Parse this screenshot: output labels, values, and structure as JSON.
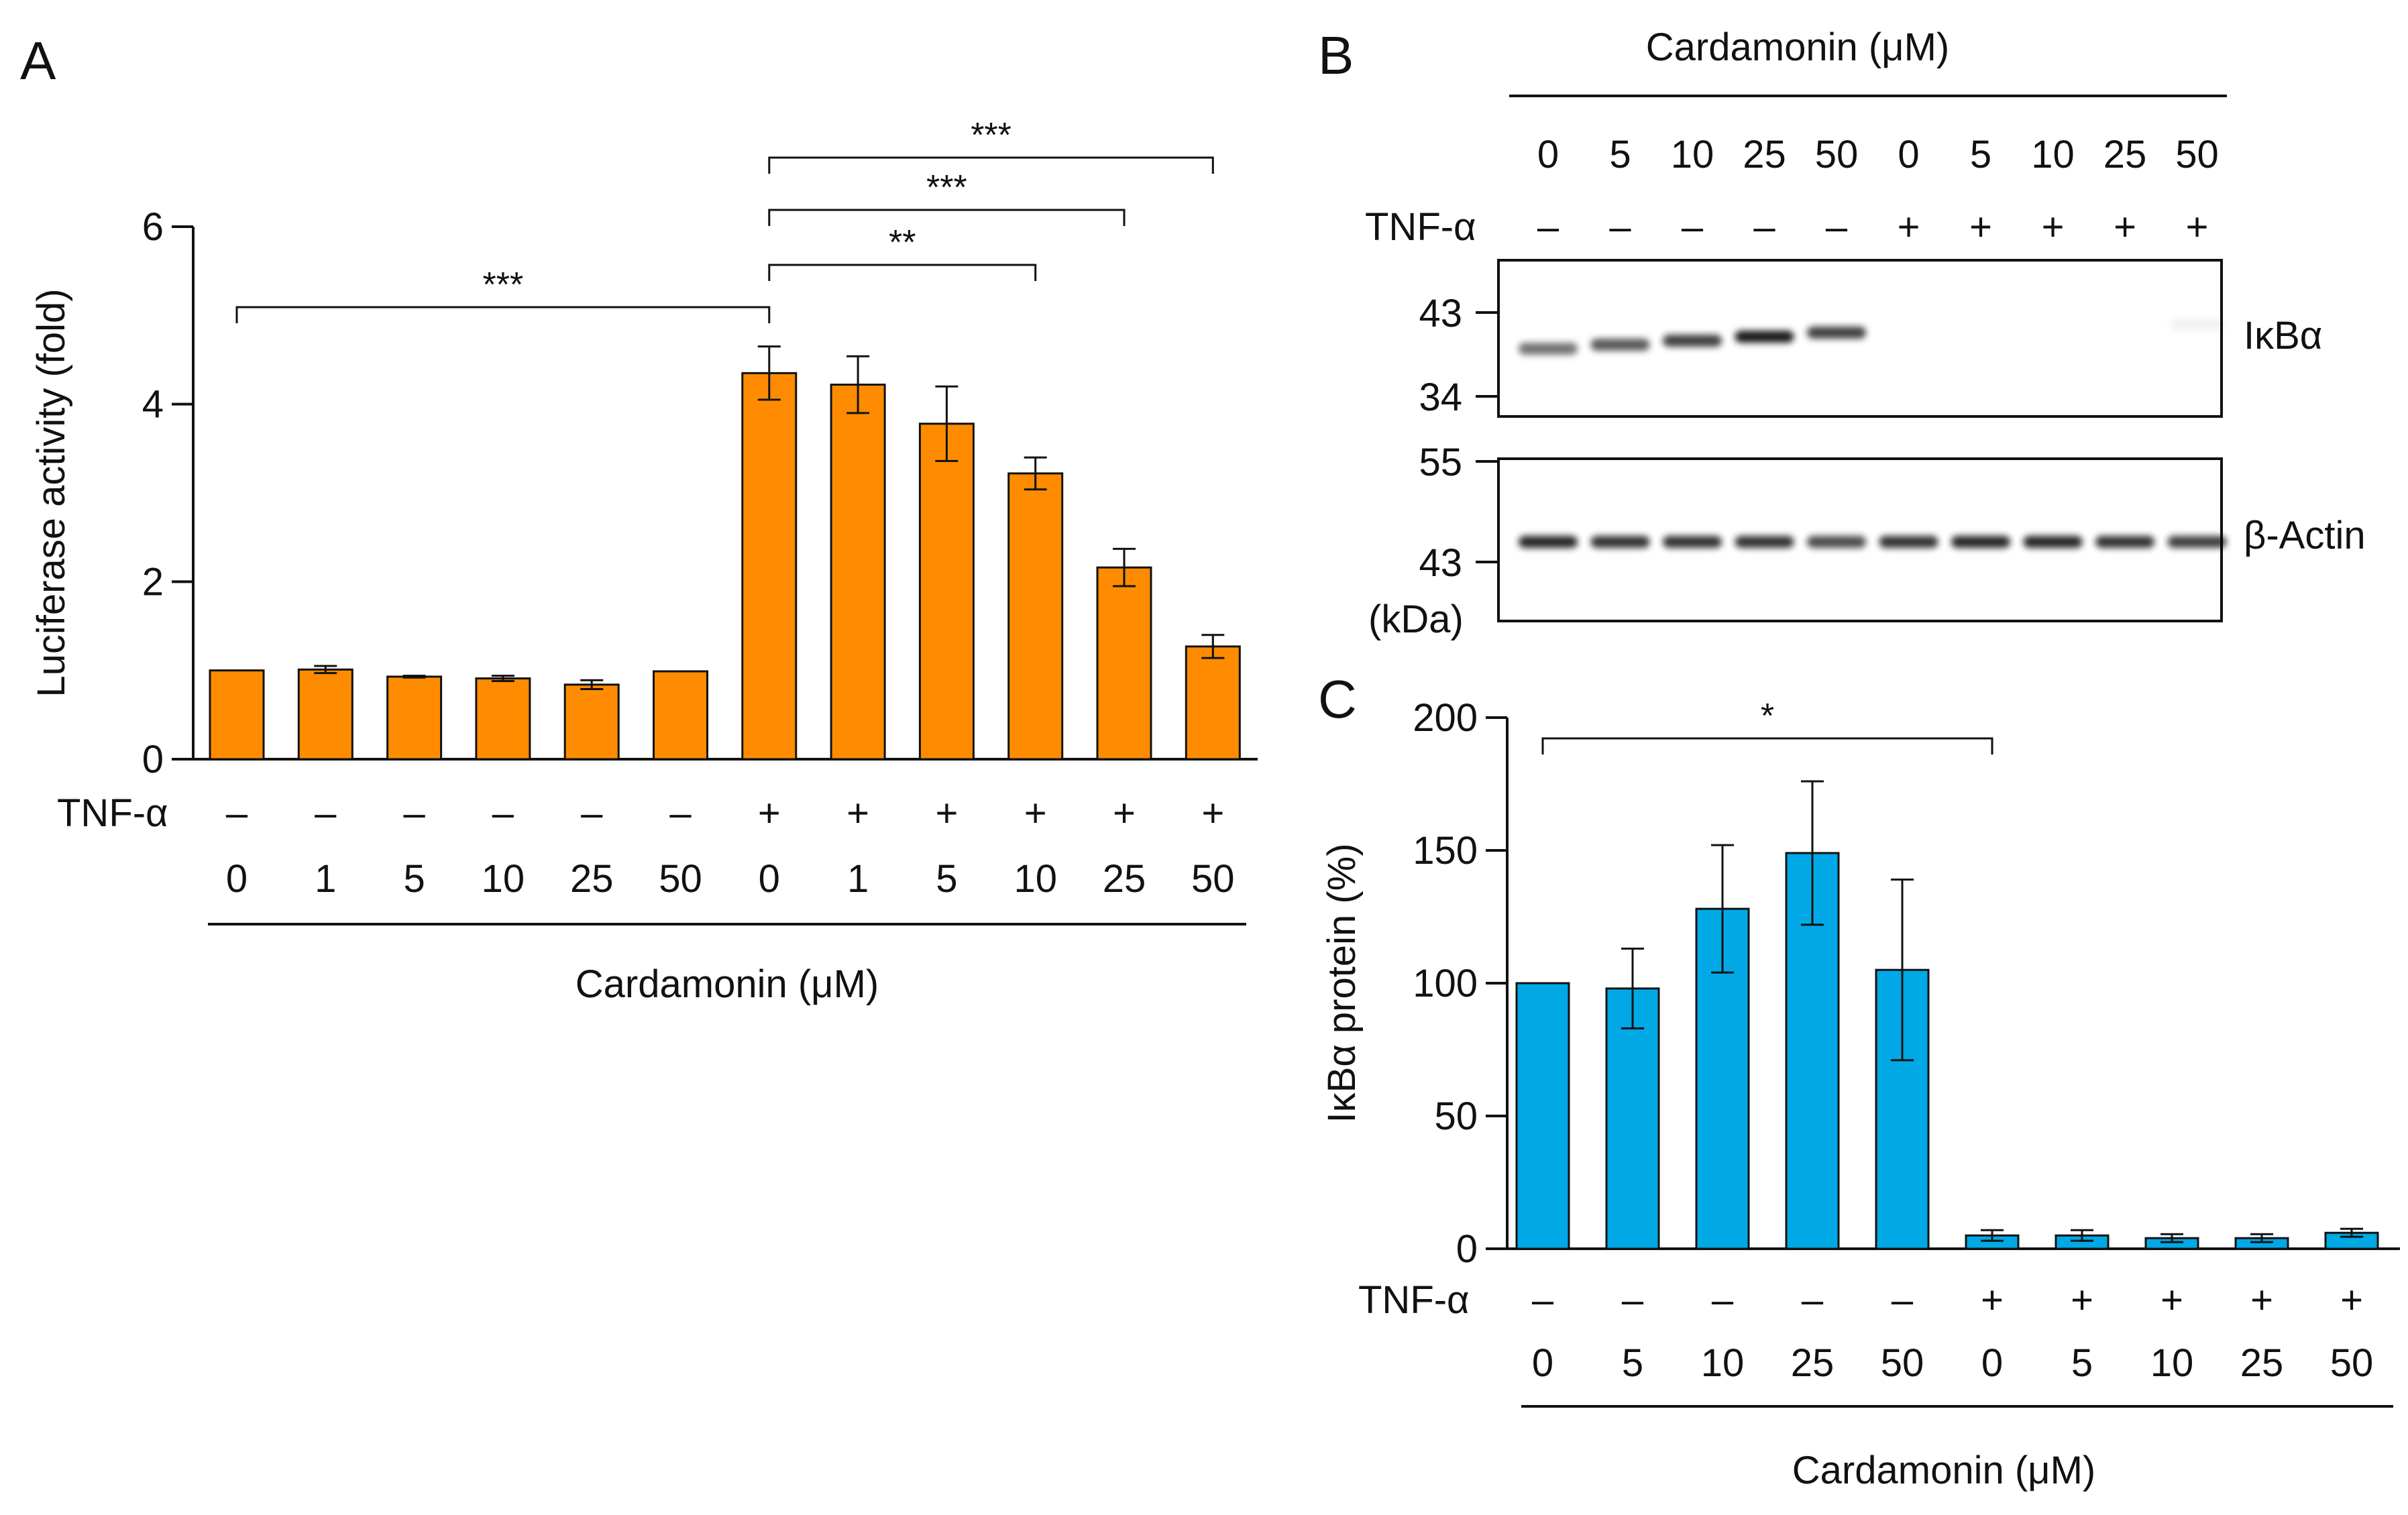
{
  "chart_data": [
    {
      "type": "bar",
      "panel": "A",
      "ylabel": "Luciferase activity (fold)",
      "xlabel": "Cardamonin (μM)",
      "ylim": [
        0,
        6
      ],
      "yticks": [
        0,
        2,
        4,
        6
      ],
      "row_label": "TNF-α",
      "tnf": [
        "–",
        "–",
        "–",
        "–",
        "–",
        "–",
        "+",
        "+",
        "+",
        "+",
        "+",
        "+"
      ],
      "categories": [
        "0",
        "1",
        "5",
        "10",
        "25",
        "50",
        "0",
        "1",
        "5",
        "10",
        "25",
        "50"
      ],
      "values": [
        1.0,
        1.01,
        0.93,
        0.91,
        0.84,
        0.99,
        4.35,
        4.22,
        3.78,
        3.22,
        2.16,
        1.27
      ],
      "errors": [
        0,
        0.04,
        0.01,
        0.03,
        0.05,
        0,
        0.3,
        0.32,
        0.42,
        0.18,
        0.21,
        0.13
      ],
      "color": "#FF8C00",
      "significance": [
        {
          "from": 0,
          "to": 6,
          "label": "***"
        },
        {
          "from": 6,
          "to": 9,
          "label": "**"
        },
        {
          "from": 6,
          "to": 10,
          "label": "***"
        },
        {
          "from": 6,
          "to": 11,
          "label": "***"
        }
      ]
    },
    {
      "type": "bar",
      "panel": "C",
      "ylabel": "IκBα protein (%)",
      "xlabel": "Cardamonin (μM)",
      "ylim": [
        0,
        200
      ],
      "yticks": [
        0,
        50,
        100,
        150,
        200
      ],
      "row_label": "TNF-α",
      "tnf": [
        "–",
        "–",
        "–",
        "–",
        "–",
        "+",
        "+",
        "+",
        "+",
        "+"
      ],
      "categories": [
        "0",
        "5",
        "10",
        "25",
        "50",
        "0",
        "5",
        "10",
        "25",
        "50"
      ],
      "values": [
        100,
        98,
        128,
        149,
        105,
        5,
        5,
        4,
        4,
        6
      ],
      "errors": [
        0,
        15,
        24,
        27,
        34,
        2,
        2,
        1.5,
        1.5,
        1.5
      ],
      "color": "#00A9E6",
      "significance": [
        {
          "from": 0,
          "to": 5,
          "label": "*"
        }
      ]
    }
  ],
  "panels": {
    "a": "A",
    "b": "B",
    "c": "C"
  },
  "blot": {
    "title": "Cardamonin (μM)",
    "row_label": "TNF-α",
    "doses": [
      "0",
      "5",
      "10",
      "25",
      "50",
      "0",
      "5",
      "10",
      "25",
      "50"
    ],
    "tnf": [
      "–",
      "–",
      "–",
      "–",
      "–",
      "+",
      "+",
      "+",
      "+",
      "+"
    ],
    "ikba": {
      "name": "IκBα",
      "markers": [
        "43",
        "34"
      ],
      "intensities": [
        0.55,
        0.65,
        0.75,
        0.9,
        0.75,
        0,
        0,
        0,
        0,
        0.06
      ]
    },
    "actin": {
      "name": "β-Actin",
      "markers": [
        "55",
        "43"
      ],
      "intensities": [
        0.85,
        0.8,
        0.8,
        0.8,
        0.7,
        0.8,
        0.85,
        0.85,
        0.8,
        0.75
      ]
    },
    "unit": "(kDa)"
  }
}
